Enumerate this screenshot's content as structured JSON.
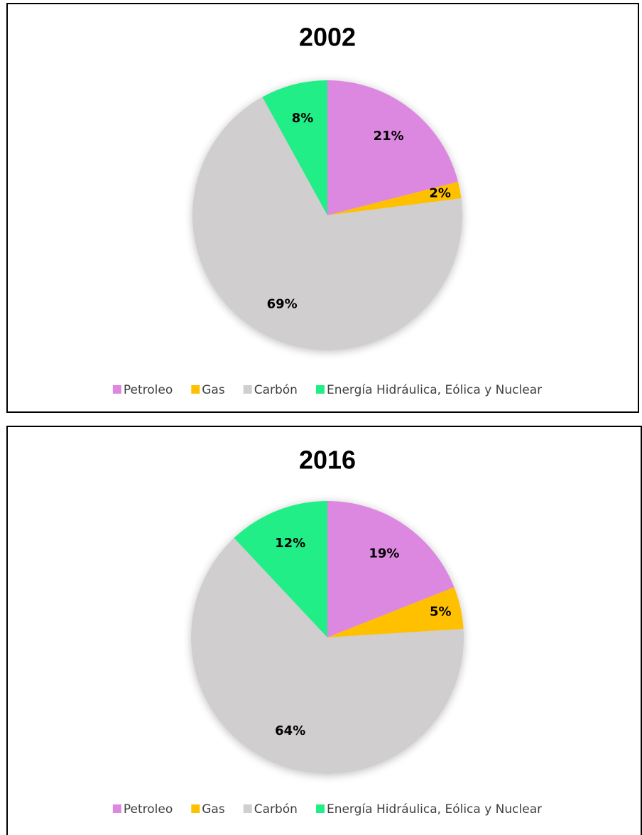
{
  "chart_data": [
    {
      "type": "pie",
      "title": "2002",
      "categories": [
        "Petroleo",
        "Gas",
        "Carbón",
        "Energía Hidráulica, Eólica y Nuclear"
      ],
      "values": [
        21,
        2,
        69,
        8
      ],
      "value_labels": [
        "21%",
        "2%",
        "69%",
        "8%"
      ],
      "colors": [
        "#dd88e0",
        "#ffc000",
        "#d0cece",
        "#22ee88"
      ],
      "legend": "bottom"
    },
    {
      "type": "pie",
      "title": "2016",
      "categories": [
        "Petroleo",
        "Gas",
        "Carbón",
        "Energía Hidráulica, Eólica y Nuclear"
      ],
      "values": [
        19,
        5,
        64,
        12
      ],
      "value_labels": [
        "19%",
        "5%",
        "64%",
        "12%"
      ],
      "colors": [
        "#dd88e0",
        "#ffc000",
        "#d0cece",
        "#22ee88"
      ],
      "legend": "bottom"
    }
  ]
}
